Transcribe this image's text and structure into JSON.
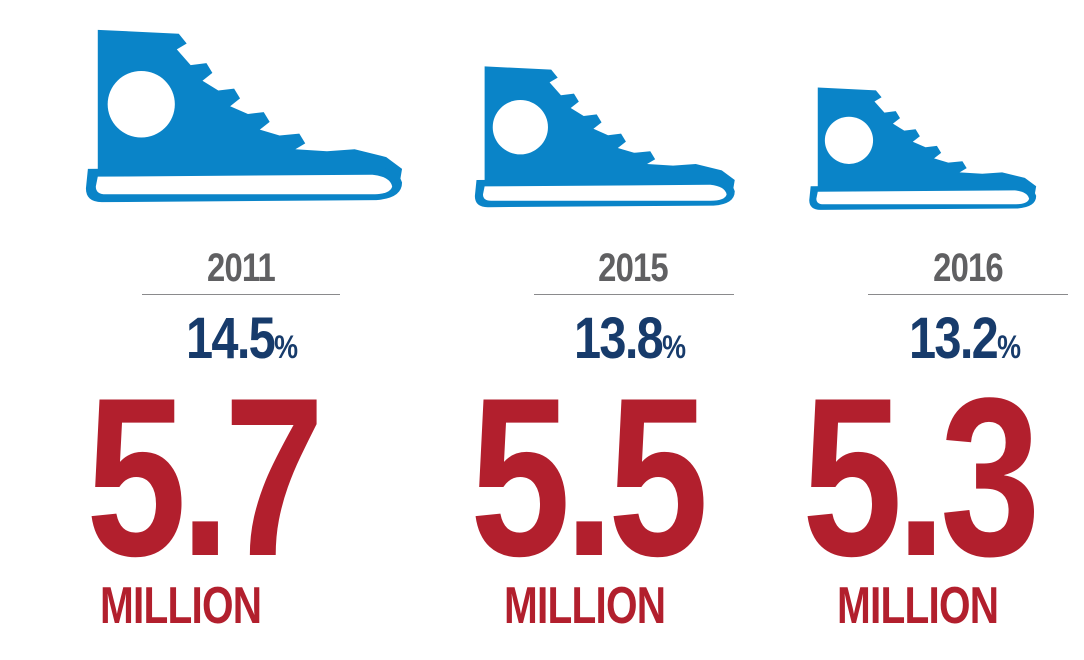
{
  "colors": {
    "shoe": "#0a84c8",
    "year": "#606062",
    "percent": "#173b6b",
    "count": "#b21f2d"
  },
  "items": [
    {
      "year": "2011",
      "percent": "14.5",
      "percent_symbol": "%",
      "count": "5.7",
      "unit": "MILLION",
      "icon": "sneaker-icon"
    },
    {
      "year": "2015",
      "percent": "13.8",
      "percent_symbol": "%",
      "count": "5.5",
      "unit": "MILLION",
      "icon": "sneaker-icon"
    },
    {
      "year": "2016",
      "percent": "13.2",
      "percent_symbol": "%",
      "count": "5.3",
      "unit": "MILLION",
      "icon": "sneaker-icon"
    }
  ]
}
